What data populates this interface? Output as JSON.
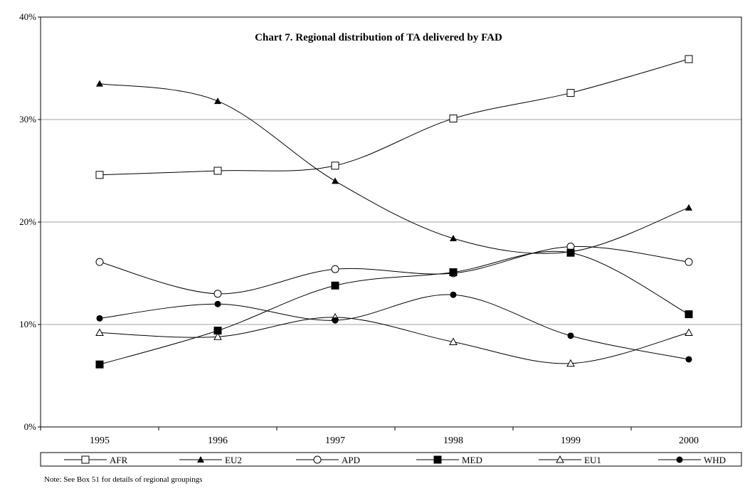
{
  "chart_data": {
    "type": "line",
    "title": "Chart 7. Regional distribution of  TA delivered by FAD",
    "categories": [
      "1995",
      "1996",
      "1997",
      "1998",
      "1999",
      "2000"
    ],
    "yticks": [
      "0%",
      "10%",
      "20%",
      "30%",
      "40%"
    ],
    "ylim": [
      0,
      40
    ],
    "grid": true,
    "legend_position": "bottom",
    "series": [
      {
        "name": "AFR",
        "marker": "open-square",
        "values": [
          24.6,
          25.0,
          25.5,
          30.1,
          32.6,
          35.9
        ]
      },
      {
        "name": "EU2",
        "marker": "filled-triangle",
        "values": [
          33.5,
          31.8,
          24.0,
          18.4,
          17.1,
          21.4
        ]
      },
      {
        "name": "APD",
        "marker": "open-circle",
        "values": [
          16.1,
          13.0,
          15.4,
          15.0,
          17.6,
          16.1
        ]
      },
      {
        "name": "MED",
        "marker": "filled-square",
        "values": [
          6.1,
          9.4,
          13.8,
          15.1,
          17.0,
          11.0
        ]
      },
      {
        "name": "EU1",
        "marker": "open-triangle",
        "values": [
          9.2,
          8.8,
          10.7,
          8.3,
          6.2,
          9.2
        ]
      },
      {
        "name": "WHD",
        "marker": "filled-circle",
        "values": [
          10.6,
          12.0,
          10.4,
          12.9,
          8.9,
          6.6
        ]
      }
    ],
    "note": "Note: See Box 51 for details of regional groupings"
  }
}
